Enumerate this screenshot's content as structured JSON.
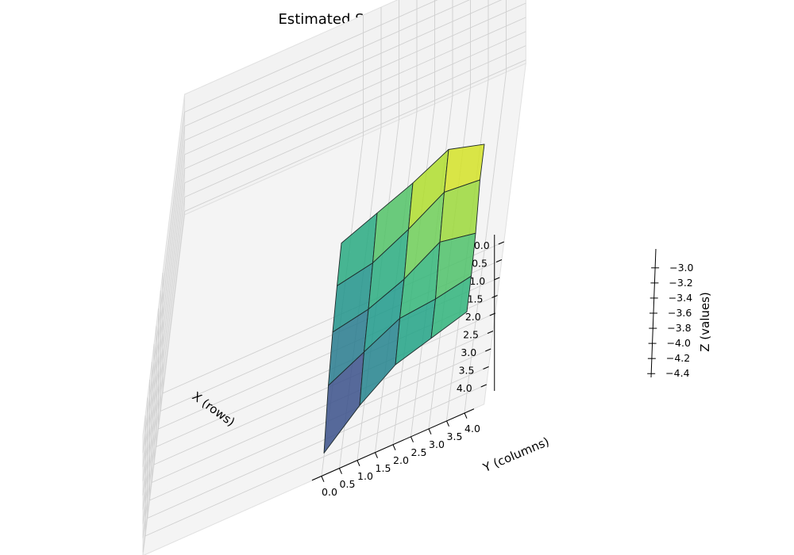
{
  "chart_data": {
    "type": "surface3d",
    "title": "Estimated State Values(TD-Table)",
    "xlabel": "X (rows)",
    "ylabel": "Y (columns)",
    "zlabel": "Z (values)",
    "x": [
      0,
      1,
      2,
      3,
      4
    ],
    "y": [
      0,
      1,
      2,
      3,
      4
    ],
    "z": [
      [
        -3.45,
        -3.25,
        -3.05,
        -2.8,
        -2.95
      ],
      [
        -3.55,
        -3.45,
        -3.2,
        -2.9,
        -2.95
      ],
      [
        -3.7,
        -3.6,
        -3.4,
        -3.1,
        -3.2
      ],
      [
        -3.95,
        -3.7,
        -3.45,
        -3.4,
        -3.3
      ],
      [
        -4.4,
        -3.95,
        -3.6,
        -3.45,
        -3.3
      ]
    ],
    "x_ticks": [
      "0.0",
      "0.5",
      "1.0",
      "1.5",
      "2.0",
      "2.5",
      "3.0",
      "3.5",
      "4.0"
    ],
    "y_ticks": [
      "0.0",
      "0.5",
      "1.0",
      "1.5",
      "2.0",
      "2.5",
      "3.0",
      "3.5",
      "4.0"
    ],
    "z_ticks": [
      "−3.0",
      "−3.2",
      "−3.4",
      "−3.6",
      "−3.8",
      "−4.0",
      "−4.2",
      "−4.4"
    ],
    "z_tick_values": [
      -3.0,
      -3.2,
      -3.4,
      -3.6,
      -3.8,
      -4.0,
      -4.2,
      -4.4
    ],
    "zlim": [
      -4.45,
      -2.75
    ],
    "colormap": "viridis",
    "grid": true
  }
}
